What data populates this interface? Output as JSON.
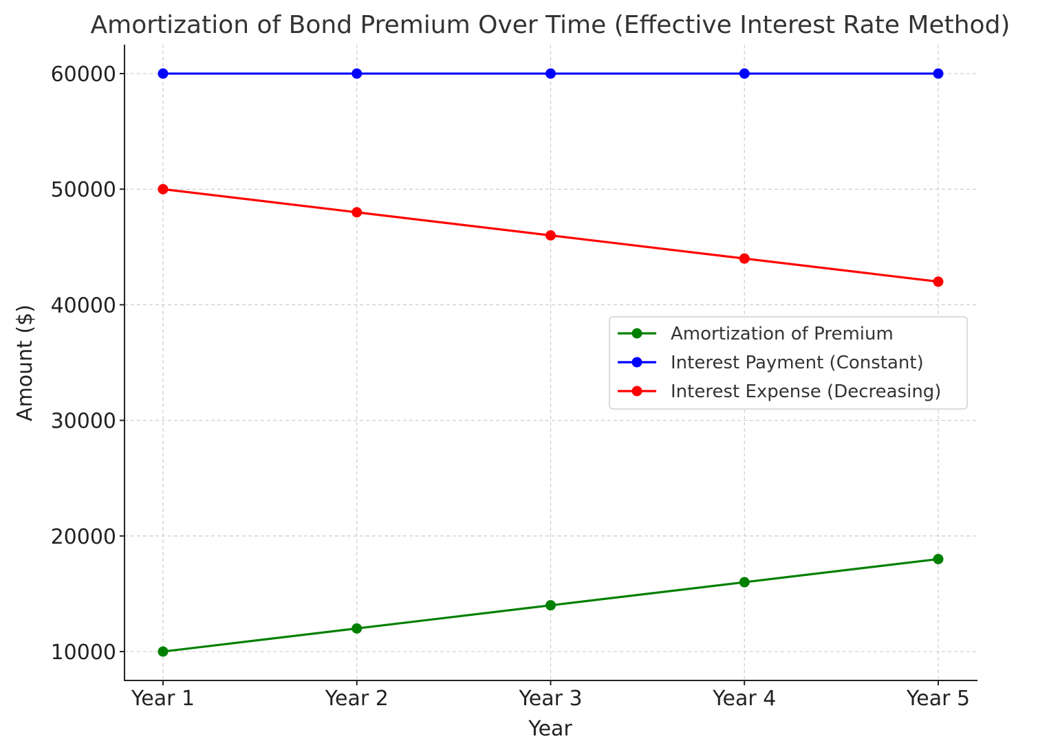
{
  "chart_data": {
    "type": "line",
    "title": "Amortization of Bond Premium Over Time (Effective Interest Rate Method)",
    "xlabel": "Year",
    "ylabel": "Amount ($)",
    "categories": [
      "Year 1",
      "Year 2",
      "Year 3",
      "Year 4",
      "Year 5"
    ],
    "ylim": [
      7500,
      62500
    ],
    "yticks": [
      10000,
      20000,
      30000,
      40000,
      50000,
      60000
    ],
    "grid": true,
    "legend_position": "center-right",
    "series": [
      {
        "name": "Amortization of Premium",
        "color": "#008000",
        "marker": "circle",
        "values": [
          10000,
          12000,
          14000,
          16000,
          18000
        ]
      },
      {
        "name": "Interest Payment (Constant)",
        "color": "#0000ff",
        "marker": "circle",
        "values": [
          60000,
          60000,
          60000,
          60000,
          60000
        ]
      },
      {
        "name": "Interest Expense (Decreasing)",
        "color": "#ff0000",
        "marker": "circle",
        "values": [
          50000,
          48000,
          46000,
          44000,
          42000
        ]
      }
    ]
  }
}
